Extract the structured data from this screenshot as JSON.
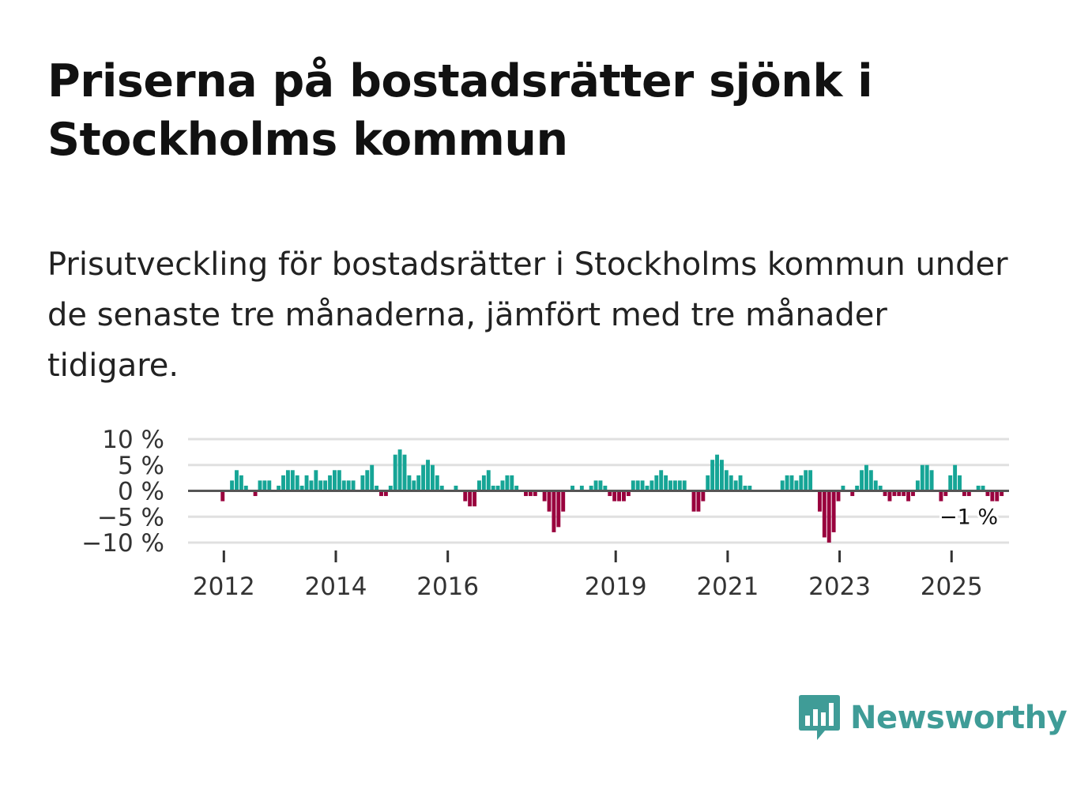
{
  "title": "Priserna på bostadsrätter sjönk i Stockholms kommun",
  "subtitle": "Prisutveckling för bostadsrätter i Stockholms kommun under de senaste tre månaderna, jämfört med tre månader tidigare.",
  "brand": {
    "name": "Newsworthy",
    "color": "#3f9c97",
    "icon": "newsworthy-bar-chart-icon"
  },
  "colors": {
    "positive": "#16a596",
    "negative": "#99003d",
    "grid": "#e0e0e0",
    "zero": "#555555"
  },
  "chart_data": {
    "type": "bar",
    "title": "Prisutveckling för bostadsrätter i Stockholms kommun",
    "xlabel": "",
    "ylabel": "",
    "ylim": [
      -10,
      10
    ],
    "yticks": [
      10,
      5,
      0,
      -5,
      -10
    ],
    "ytick_labels": [
      "10 %",
      "5 %",
      "0 %",
      "−5 %",
      "−10 %"
    ],
    "x_start": "2011-06",
    "x_end": "2026-02",
    "xticks": [
      {
        "year": 2012,
        "label": "2012"
      },
      {
        "year": 2014,
        "label": "2014"
      },
      {
        "year": 2016,
        "label": "2016"
      },
      {
        "year": 2019,
        "label": "2019"
      },
      {
        "year": 2021,
        "label": "2021"
      },
      {
        "year": 2023,
        "label": "2023"
      },
      {
        "year": 2025,
        "label": "2025"
      }
    ],
    "series": [
      {
        "name": "Prisutveckling",
        "start": "2012-01",
        "unit": "%",
        "values": [
          -2,
          0,
          2,
          4,
          3,
          1,
          0,
          -1,
          2,
          2,
          2,
          0,
          1,
          3,
          4,
          4,
          3,
          1,
          3,
          2,
          4,
          2,
          2,
          3,
          4,
          4,
          2,
          2,
          2,
          0,
          3,
          4,
          5,
          1,
          -1,
          -1,
          1,
          7,
          8,
          7,
          3,
          2,
          3,
          5,
          6,
          5,
          3,
          1,
          0,
          0,
          1,
          0,
          -2,
          -3,
          -3,
          2,
          3,
          4,
          1,
          1,
          2,
          3,
          3,
          1,
          0,
          -1,
          -1,
          -1,
          0,
          -2,
          -4,
          -8,
          -7,
          -4,
          0,
          1,
          0,
          1,
          0,
          1,
          2,
          2,
          1,
          -1,
          -2,
          -2,
          -2,
          -1,
          2,
          2,
          2,
          1,
          2,
          3,
          4,
          3,
          2,
          2,
          2,
          2,
          0,
          -4,
          -4,
          -2,
          3,
          6,
          7,
          6,
          4,
          3,
          2,
          3,
          1,
          1,
          0,
          0,
          0,
          0,
          0,
          0,
          2,
          3,
          3,
          2,
          3,
          4,
          4,
          0,
          -4,
          -9,
          -10,
          -8,
          -2,
          1,
          0,
          -1,
          1,
          4,
          5,
          4,
          2,
          1,
          -1,
          -2,
          -1,
          -1,
          -1,
          -2,
          -1,
          2,
          5,
          5,
          4,
          0,
          -2,
          -1,
          3,
          5,
          3,
          -1,
          -1,
          0,
          1,
          1,
          -1,
          -2,
          -2,
          -1
        ]
      }
    ],
    "last_value_label": "−1 %"
  }
}
